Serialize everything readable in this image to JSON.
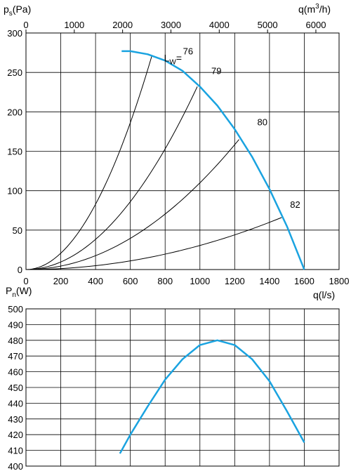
{
  "chart_data": [
    {
      "type": "line",
      "title": "",
      "ylabel": {
        "main": "p",
        "sub": "s",
        "unit": "(Pa)"
      },
      "xlabel": "q(l/s)",
      "x2label": {
        "main": "q(m",
        "sup": "3",
        "unit": "/h)"
      },
      "xlim": [
        0,
        1800
      ],
      "ylim": [
        0,
        300
      ],
      "x2lim": [
        0,
        6480
      ],
      "x_ticks": [
        "0",
        "200",
        "400",
        "600",
        "800",
        "1000",
        "1200",
        "1400",
        "1600",
        "1800"
      ],
      "x2_ticks": [
        "0",
        "1000",
        "2000",
        "3000",
        "4000",
        "5000",
        "6000"
      ],
      "y_ticks": [
        "0",
        "50",
        "100",
        "150",
        "200",
        "250",
        "300"
      ],
      "grid": true,
      "fan_curve_color": "#1aa3e0",
      "fan_curve": {
        "x": [
          550,
          600,
          700,
          800,
          900,
          1000,
          1100,
          1200,
          1300,
          1400,
          1500,
          1600
        ],
        "y": [
          277,
          277,
          273,
          265,
          252,
          232,
          208,
          178,
          143,
          102,
          55,
          0
        ]
      },
      "system_curves": [
        {
          "label": "76",
          "x_end": 725,
          "y_end": 272
        },
        {
          "label": "79",
          "x_end": 985,
          "y_end": 232
        },
        {
          "label": "80",
          "x_end": 1225,
          "y_end": 165
        },
        {
          "label": "82",
          "x_end": 1470,
          "y_end": 66
        }
      ],
      "lw_label": {
        "main": "L",
        "sub": "W",
        "eq": "="
      }
    },
    {
      "type": "line",
      "title": "",
      "ylabel": {
        "main": "P",
        "sub": "n",
        "unit": "(W)"
      },
      "xlim": [
        0,
        1800
      ],
      "ylim": [
        400,
        500
      ],
      "y_ticks": [
        "400",
        "410",
        "420",
        "430",
        "440",
        "450",
        "460",
        "470",
        "480",
        "490",
        "500"
      ],
      "grid": true,
      "series": [
        {
          "color": "#1aa3e0",
          "x": [
            540,
            600,
            700,
            800,
            900,
            1000,
            1100,
            1200,
            1300,
            1400,
            1500,
            1600
          ],
          "y": [
            408,
            420,
            438,
            455,
            468,
            477,
            480,
            477,
            468,
            454,
            435,
            415
          ]
        }
      ]
    }
  ]
}
